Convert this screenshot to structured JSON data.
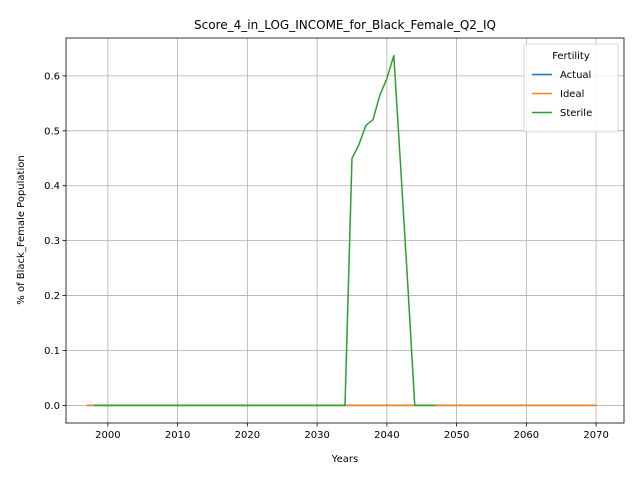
{
  "chart_data": {
    "type": "line",
    "title": "Score_4_in_LOG_INCOME_for_Black_Female_Q2_IQ",
    "xlabel": "Years",
    "ylabel": "% of Black_Female Population",
    "xlim": [
      1994,
      2074
    ],
    "ylim": [
      -0.032,
      0.669
    ],
    "x_ticks": [
      2000,
      2010,
      2020,
      2030,
      2040,
      2050,
      2060,
      2070
    ],
    "y_ticks": [
      0.0,
      0.1,
      0.2,
      0.3,
      0.4,
      0.5,
      0.6
    ],
    "y_tick_labels": [
      "0.0",
      "0.1",
      "0.2",
      "0.3",
      "0.4",
      "0.5",
      "0.6"
    ],
    "grid": true,
    "legend": {
      "title": "Fertility",
      "placement": "top-right"
    },
    "series": [
      {
        "name": "Actual",
        "color": "#1f77b4",
        "x": [
          1997,
          2070
        ],
        "y": [
          0.0,
          0.0
        ]
      },
      {
        "name": "Ideal",
        "color": "#ff7f0e",
        "x": [
          1997,
          2070
        ],
        "y": [
          0.0,
          0.0
        ]
      },
      {
        "name": "Sterile",
        "color": "#2ca02c",
        "x": [
          1998,
          2034,
          2035,
          2036,
          2037,
          2038,
          2039,
          2040,
          2041,
          2042,
          2043,
          2044,
          2045,
          2046,
          2047
        ],
        "y": [
          0.0,
          0.0,
          0.45,
          0.475,
          0.51,
          0.52,
          0.565,
          0.595,
          0.637,
          0.43,
          0.22,
          0.0,
          0.0,
          0.0,
          0.0
        ]
      }
    ]
  }
}
